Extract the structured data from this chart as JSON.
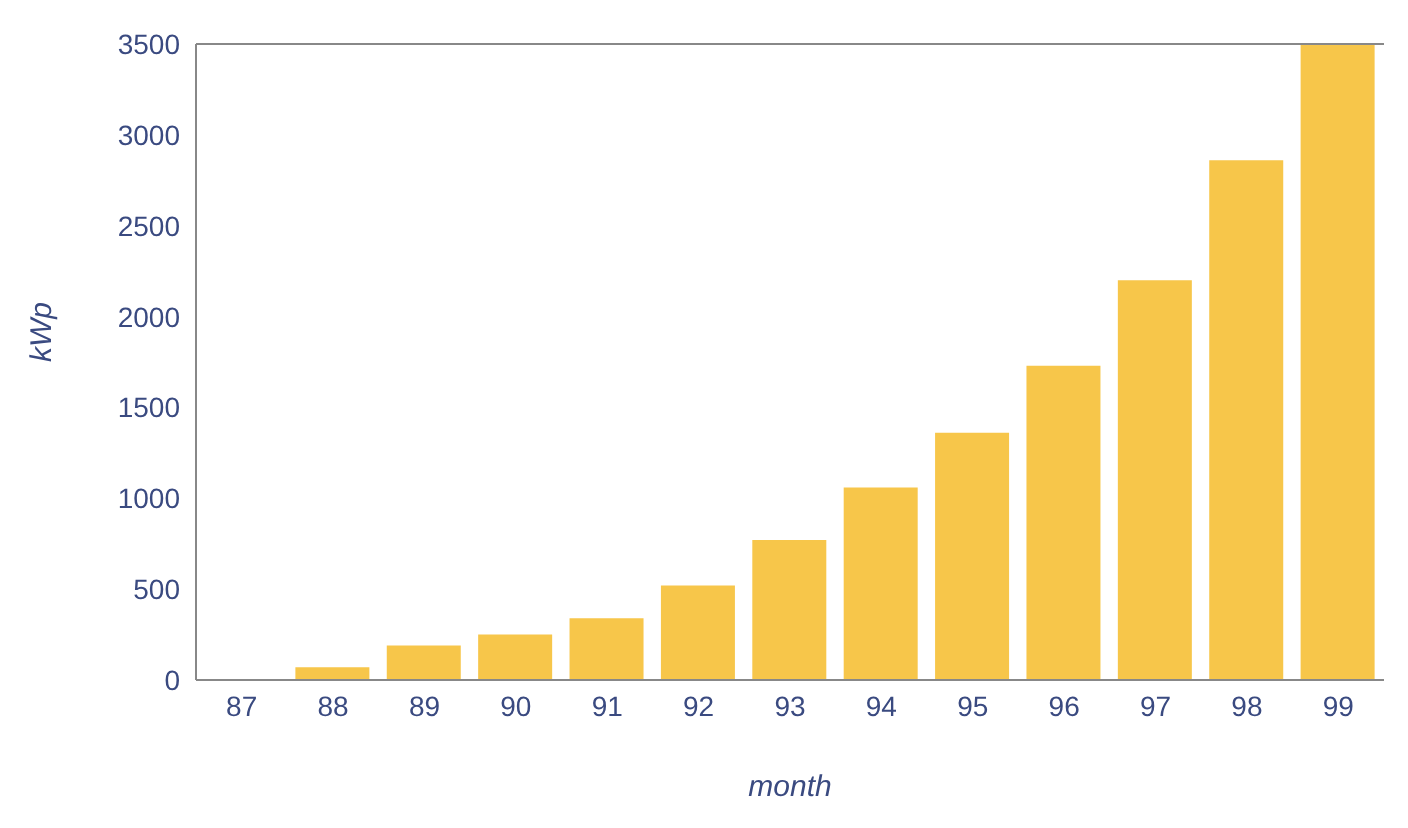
{
  "chart_data": {
    "type": "bar",
    "xlabel": "month",
    "ylabel": "kWp",
    "categories": [
      "87",
      "88",
      "89",
      "90",
      "91",
      "92",
      "93",
      "94",
      "95",
      "96",
      "97",
      "98",
      "99"
    ],
    "values": [
      0,
      70,
      190,
      250,
      340,
      520,
      770,
      1060,
      1360,
      1730,
      2200,
      2860,
      3500
    ],
    "color": "#f7c64a",
    "ylim": [
      0,
      3500
    ],
    "yticks": [
      0,
      500,
      1000,
      1500,
      2000,
      2500,
      3000,
      3500
    ],
    "grid": false,
    "legend": false
  }
}
